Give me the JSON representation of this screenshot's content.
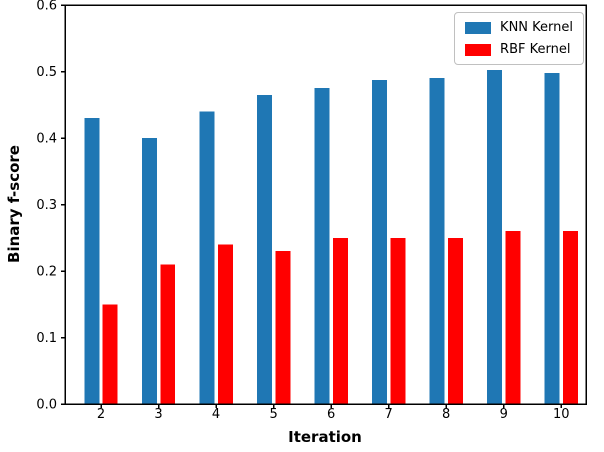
{
  "chart_data": {
    "type": "bar",
    "title": "",
    "xlabel": "Iteration",
    "ylabel": "Binary f-score",
    "categories": [
      2,
      3,
      4,
      5,
      6,
      7,
      8,
      9,
      10
    ],
    "series": [
      {
        "name": "KNN Kernel",
        "color": "#1f77b4",
        "values": [
          0.43,
          0.4,
          0.44,
          0.465,
          0.475,
          0.487,
          0.49,
          0.502,
          0.498
        ]
      },
      {
        "name": "RBF Kernel",
        "color": "#ff0000",
        "values": [
          0.15,
          0.21,
          0.24,
          0.23,
          0.25,
          0.25,
          0.25,
          0.26,
          0.26
        ]
      }
    ],
    "xlim": [
      1.374,
      10.43
    ],
    "ylim": [
      0,
      0.6
    ],
    "yticks": [
      0.0,
      0.1,
      0.2,
      0.3,
      0.4,
      0.5,
      0.6
    ],
    "grid": false,
    "legend_position": "upper right",
    "axis_color": "#000000"
  }
}
